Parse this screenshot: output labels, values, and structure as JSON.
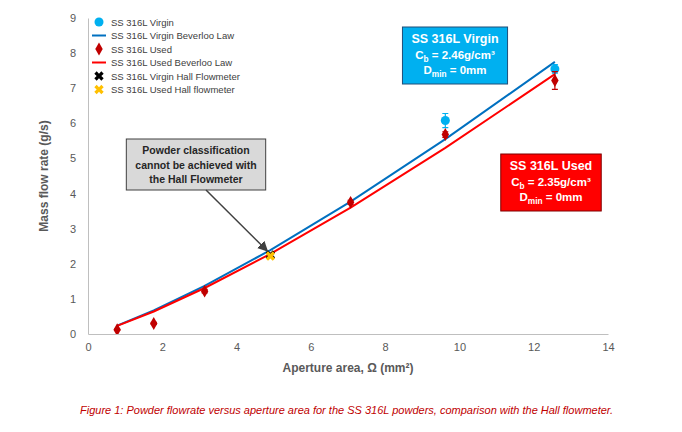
{
  "chart_data": {
    "type": "scatter",
    "x_label": "Aperture area, Ω (mm²)",
    "y_label": "Mass flow rate (g/s)",
    "caption": "Figure 1: Powder flowrate versus aperture area for the SS 316L powders, comparison with the Hall flowmeter.",
    "xlim": [
      0,
      14
    ],
    "xticks": [
      0,
      2,
      4,
      6,
      8,
      10,
      12,
      14
    ],
    "ylim": [
      0,
      9
    ],
    "yticks": [
      0,
      1,
      2,
      3,
      4,
      5,
      6,
      7,
      8,
      9
    ],
    "grid": false,
    "legend": "top-left",
    "series": [
      {
        "name": "SS 316L Virgin",
        "type": "scatter",
        "marker": "circle",
        "color": "#00b0f0",
        "x": [
          9.62,
          12.57
        ],
        "values": [
          6.08,
          7.55
        ],
        "errors": [
          0.2,
          0.12
        ]
      },
      {
        "name": "SS 316L Virgin Beverloo Law",
        "type": "line",
        "line_style": "solid",
        "color": "#0070c0",
        "x": [
          0.785,
          1.77,
          3.14,
          4.91,
          7.07,
          9.62,
          12.57
        ],
        "values": [
          0.24,
          0.67,
          1.37,
          2.39,
          3.77,
          5.55,
          7.75
        ]
      },
      {
        "name": "SS 316L Used",
        "type": "scatter",
        "marker": "diamond",
        "color": "#c00000",
        "x": [
          0.785,
          1.77,
          3.14,
          7.07,
          9.62,
          12.57
        ],
        "values": [
          0.12,
          0.3,
          1.22,
          3.75,
          5.68,
          7.22
        ],
        "errors": [
          0.02,
          0.03,
          0.05,
          0.06,
          0.08,
          0.25
        ]
      },
      {
        "name": "SS 316L Used Beverloo Law",
        "type": "line",
        "line_style": "solid",
        "color": "#ff0000",
        "x": [
          0.785,
          1.77,
          3.14,
          4.91,
          7.07,
          9.62,
          12.57
        ],
        "values": [
          0.23,
          0.64,
          1.31,
          2.28,
          3.6,
          5.3,
          7.4
        ]
      },
      {
        "name": "SS 316L Virgin Hall Flowmeter",
        "type": "scatter",
        "marker": "x",
        "color": "#000000",
        "x": [
          4.91
        ],
        "values": [
          2.25
        ]
      },
      {
        "name": "SS 316L Used Hall flowmeter",
        "type": "scatter",
        "marker": "x",
        "color": "#ffc000",
        "x": [
          4.91
        ],
        "values": [
          2.22
        ]
      }
    ],
    "annotations": [
      {
        "color": "#00b0f0",
        "lines": [
          [
            {
              "text": "SS 316L Virgin"
            }
          ],
          [
            {
              "text": "C"
            },
            {
              "text": "b",
              "sub": true
            },
            {
              "text": " = 2.46g/cm³"
            }
          ],
          [
            {
              "text": "D"
            },
            {
              "text": "min",
              "sub": true
            },
            {
              "text": " = 0mm"
            }
          ]
        ]
      },
      {
        "color": "#ff0000",
        "lines": [
          [
            {
              "text": "SS 316L Used"
            }
          ],
          [
            {
              "text": "C"
            },
            {
              "text": "b",
              "sub": true
            },
            {
              "text": " = 2.35g/cm³"
            }
          ],
          [
            {
              "text": "D"
            },
            {
              "text": "min",
              "sub": true
            },
            {
              "text": " = 0mm"
            }
          ]
        ]
      },
      {
        "color": "#d9d9d9",
        "target": [
          4.91,
          2.22
        ],
        "lines": [
          [
            {
              "text": "Powder classification"
            }
          ],
          [
            {
              "text": "cannot be achieved with"
            }
          ],
          [
            {
              "text": "the Hall Flowmeter"
            }
          ]
        ]
      }
    ]
  }
}
